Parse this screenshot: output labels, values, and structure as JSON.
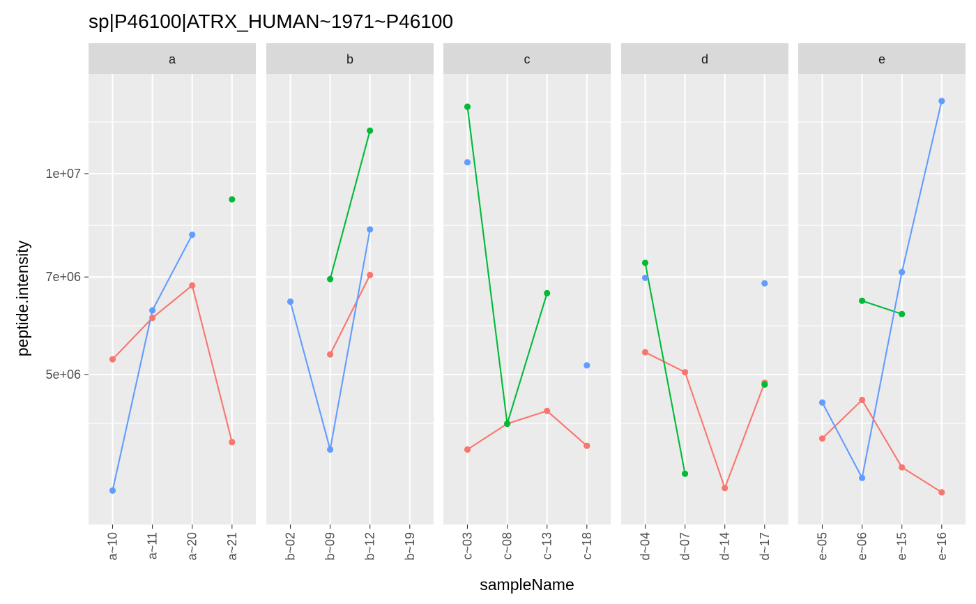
{
  "chart_data": {
    "type": "line",
    "title": "sp|P46100|ATRX_HUMAN~1971~P46100",
    "xlabel": "sampleName",
    "ylabel": "peptide.intensity",
    "y_scale": "log10",
    "ylim": [
      3250000,
      15000000
    ],
    "yticks": [
      5000000,
      7000000,
      10000000
    ],
    "ytick_labels": [
      "5e+06",
      "7e+06",
      "1e+07"
    ],
    "grid": true,
    "legend": "none",
    "facets": [
      {
        "label": "a",
        "categories": [
          "a~10",
          "a~11",
          "a~20",
          "a~21"
        ],
        "series": [
          {
            "color": "#F8766D",
            "values": [
              5270000,
              6080000,
              6800000,
              3960000
            ]
          },
          {
            "color": "#00BA38",
            "values": [
              null,
              null,
              null,
              9150000
            ]
          },
          {
            "color": "#619CFF",
            "values": [
              3350000,
              6240000,
              8100000,
              null
            ]
          }
        ]
      },
      {
        "label": "b",
        "categories": [
          "b~02",
          "b~09",
          "b~12",
          "b~19"
        ],
        "series": [
          {
            "color": "#F8766D",
            "values": [
              null,
              5360000,
              7050000,
              null
            ]
          },
          {
            "color": "#00BA38",
            "values": [
              null,
              6950000,
              11600000,
              null
            ]
          },
          {
            "color": "#619CFF",
            "values": [
              6430000,
              3860000,
              8250000,
              null
            ]
          }
        ]
      },
      {
        "label": "c",
        "categories": [
          "c~03",
          "c~08",
          "c~13",
          "c~18"
        ],
        "series": [
          {
            "color": "#F8766D",
            "values": [
              3860000,
              4220000,
              4410000,
              3910000
            ]
          },
          {
            "color": "#00BA38",
            "values": [
              12600000,
              4220000,
              6620000,
              null
            ]
          },
          {
            "color": "#619CFF",
            "values": [
              10400000,
              null,
              null,
              5160000
            ]
          }
        ]
      },
      {
        "label": "d",
        "categories": [
          "d~04",
          "d~07",
          "d~14",
          "d~17"
        ],
        "series": [
          {
            "color": "#F8766D",
            "values": [
              5400000,
              5040000,
              3380000,
              4860000
            ]
          },
          {
            "color": "#00BA38",
            "values": [
              7350000,
              3550000,
              null,
              4830000
            ]
          },
          {
            "color": "#619CFF",
            "values": [
              6980000,
              null,
              null,
              6850000
            ]
          }
        ]
      },
      {
        "label": "e",
        "categories": [
          "e~05",
          "e~06",
          "e~15",
          "e~16"
        ],
        "series": [
          {
            "color": "#F8766D",
            "values": [
              4010000,
              4580000,
              3630000,
              3330000
            ]
          },
          {
            "color": "#00BA38",
            "values": [
              null,
              6450000,
              6160000,
              null
            ]
          },
          {
            "color": "#619CFF",
            "values": [
              4540000,
              3500000,
              7120000,
              12850000
            ]
          }
        ]
      }
    ]
  }
}
